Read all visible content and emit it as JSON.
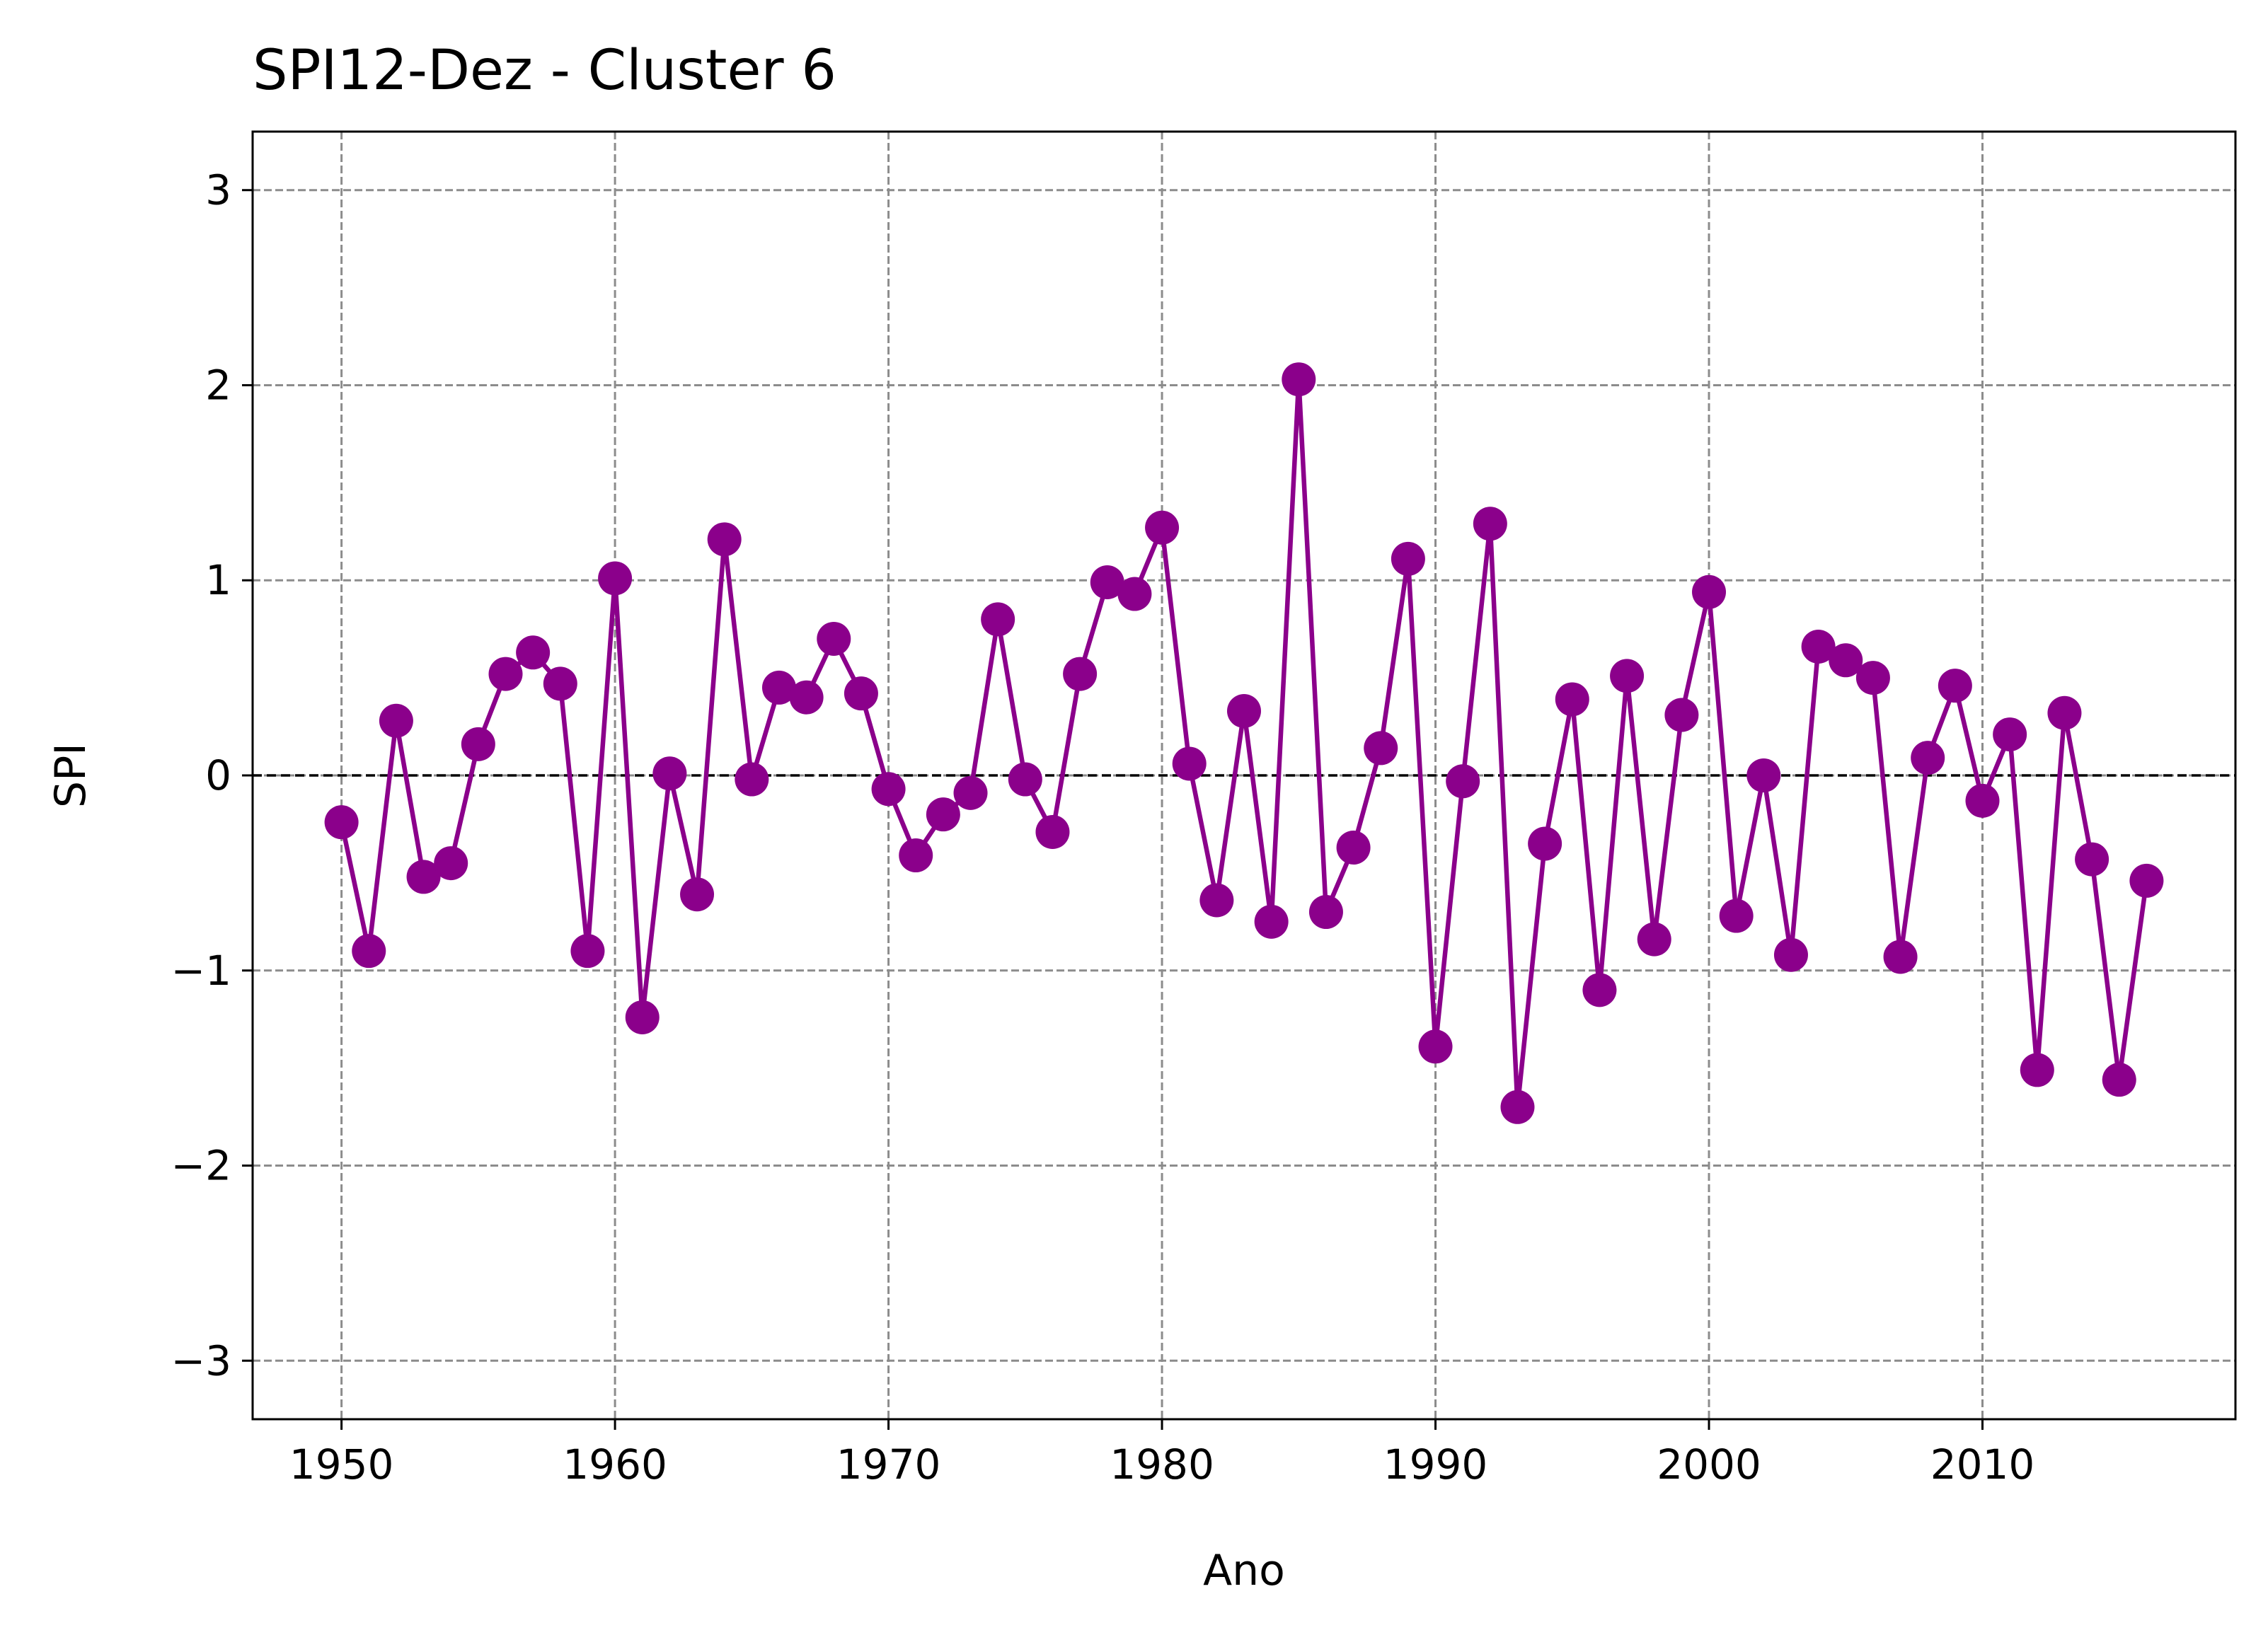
{
  "chart_data": {
    "type": "line",
    "title": "SPI12-Dez - Cluster 6",
    "xlabel": "Ano",
    "ylabel": "SPI",
    "xlim": [
      1946.75,
      2019.25
    ],
    "ylim": [
      -3.3,
      3.3
    ],
    "xticks": [
      1950,
      1960,
      1970,
      1980,
      1990,
      2000,
      2010
    ],
    "yticks": [
      -3,
      -2,
      -1,
      0,
      1,
      2,
      3
    ],
    "ytick_labels": [
      "−3",
      "−2",
      "−1",
      "0",
      "1",
      "2",
      "3"
    ],
    "grid": true,
    "reference_line": 0,
    "colors": {
      "series": "#8b008b",
      "grid": "#8c8c8c",
      "reference": "#000000"
    },
    "series": [
      {
        "x": [
          1950,
          1951,
          1952,
          1953,
          1954,
          1955,
          1956,
          1957,
          1958,
          1959,
          1960,
          1961,
          1962,
          1963,
          1964,
          1965,
          1966,
          1967,
          1968,
          1969,
          1970,
          1971,
          1972,
          1973,
          1974,
          1975,
          1976,
          1977,
          1978,
          1979,
          1980,
          1981,
          1982,
          1983,
          1984,
          1985,
          1986,
          1987,
          1988,
          1989,
          1990,
          1991,
          1992,
          1993,
          1994,
          1995,
          1996,
          1997,
          1998,
          1999,
          2000,
          2001,
          2002,
          2003,
          2004,
          2005,
          2006,
          2007,
          2008,
          2009,
          2010,
          2011,
          2012,
          2013,
          2014,
          2015,
          2016
        ],
        "values": [
          -0.24,
          -0.9,
          0.28,
          -0.52,
          -0.45,
          0.16,
          0.52,
          0.63,
          0.47,
          -0.9,
          1.01,
          -1.24,
          0.01,
          -0.61,
          1.21,
          -0.02,
          0.45,
          0.4,
          0.7,
          0.42,
          -0.07,
          -0.41,
          -0.2,
          -0.09,
          0.8,
          -0.02,
          -0.29,
          0.52,
          0.99,
          0.93,
          1.27,
          0.06,
          -0.64,
          0.33,
          -0.75,
          2.03,
          -0.7,
          -0.37,
          0.14,
          1.11,
          -1.39,
          -0.03,
          1.29,
          -1.7,
          -0.35,
          0.39,
          -1.1,
          0.51,
          -0.84,
          0.31,
          0.94,
          -0.72,
          0.0,
          -0.92,
          0.66,
          0.59,
          0.5,
          -0.93,
          0.09,
          0.46,
          -0.13,
          0.21,
          -1.51,
          0.32,
          -0.43,
          -1.56,
          -0.54
        ]
      }
    ]
  }
}
